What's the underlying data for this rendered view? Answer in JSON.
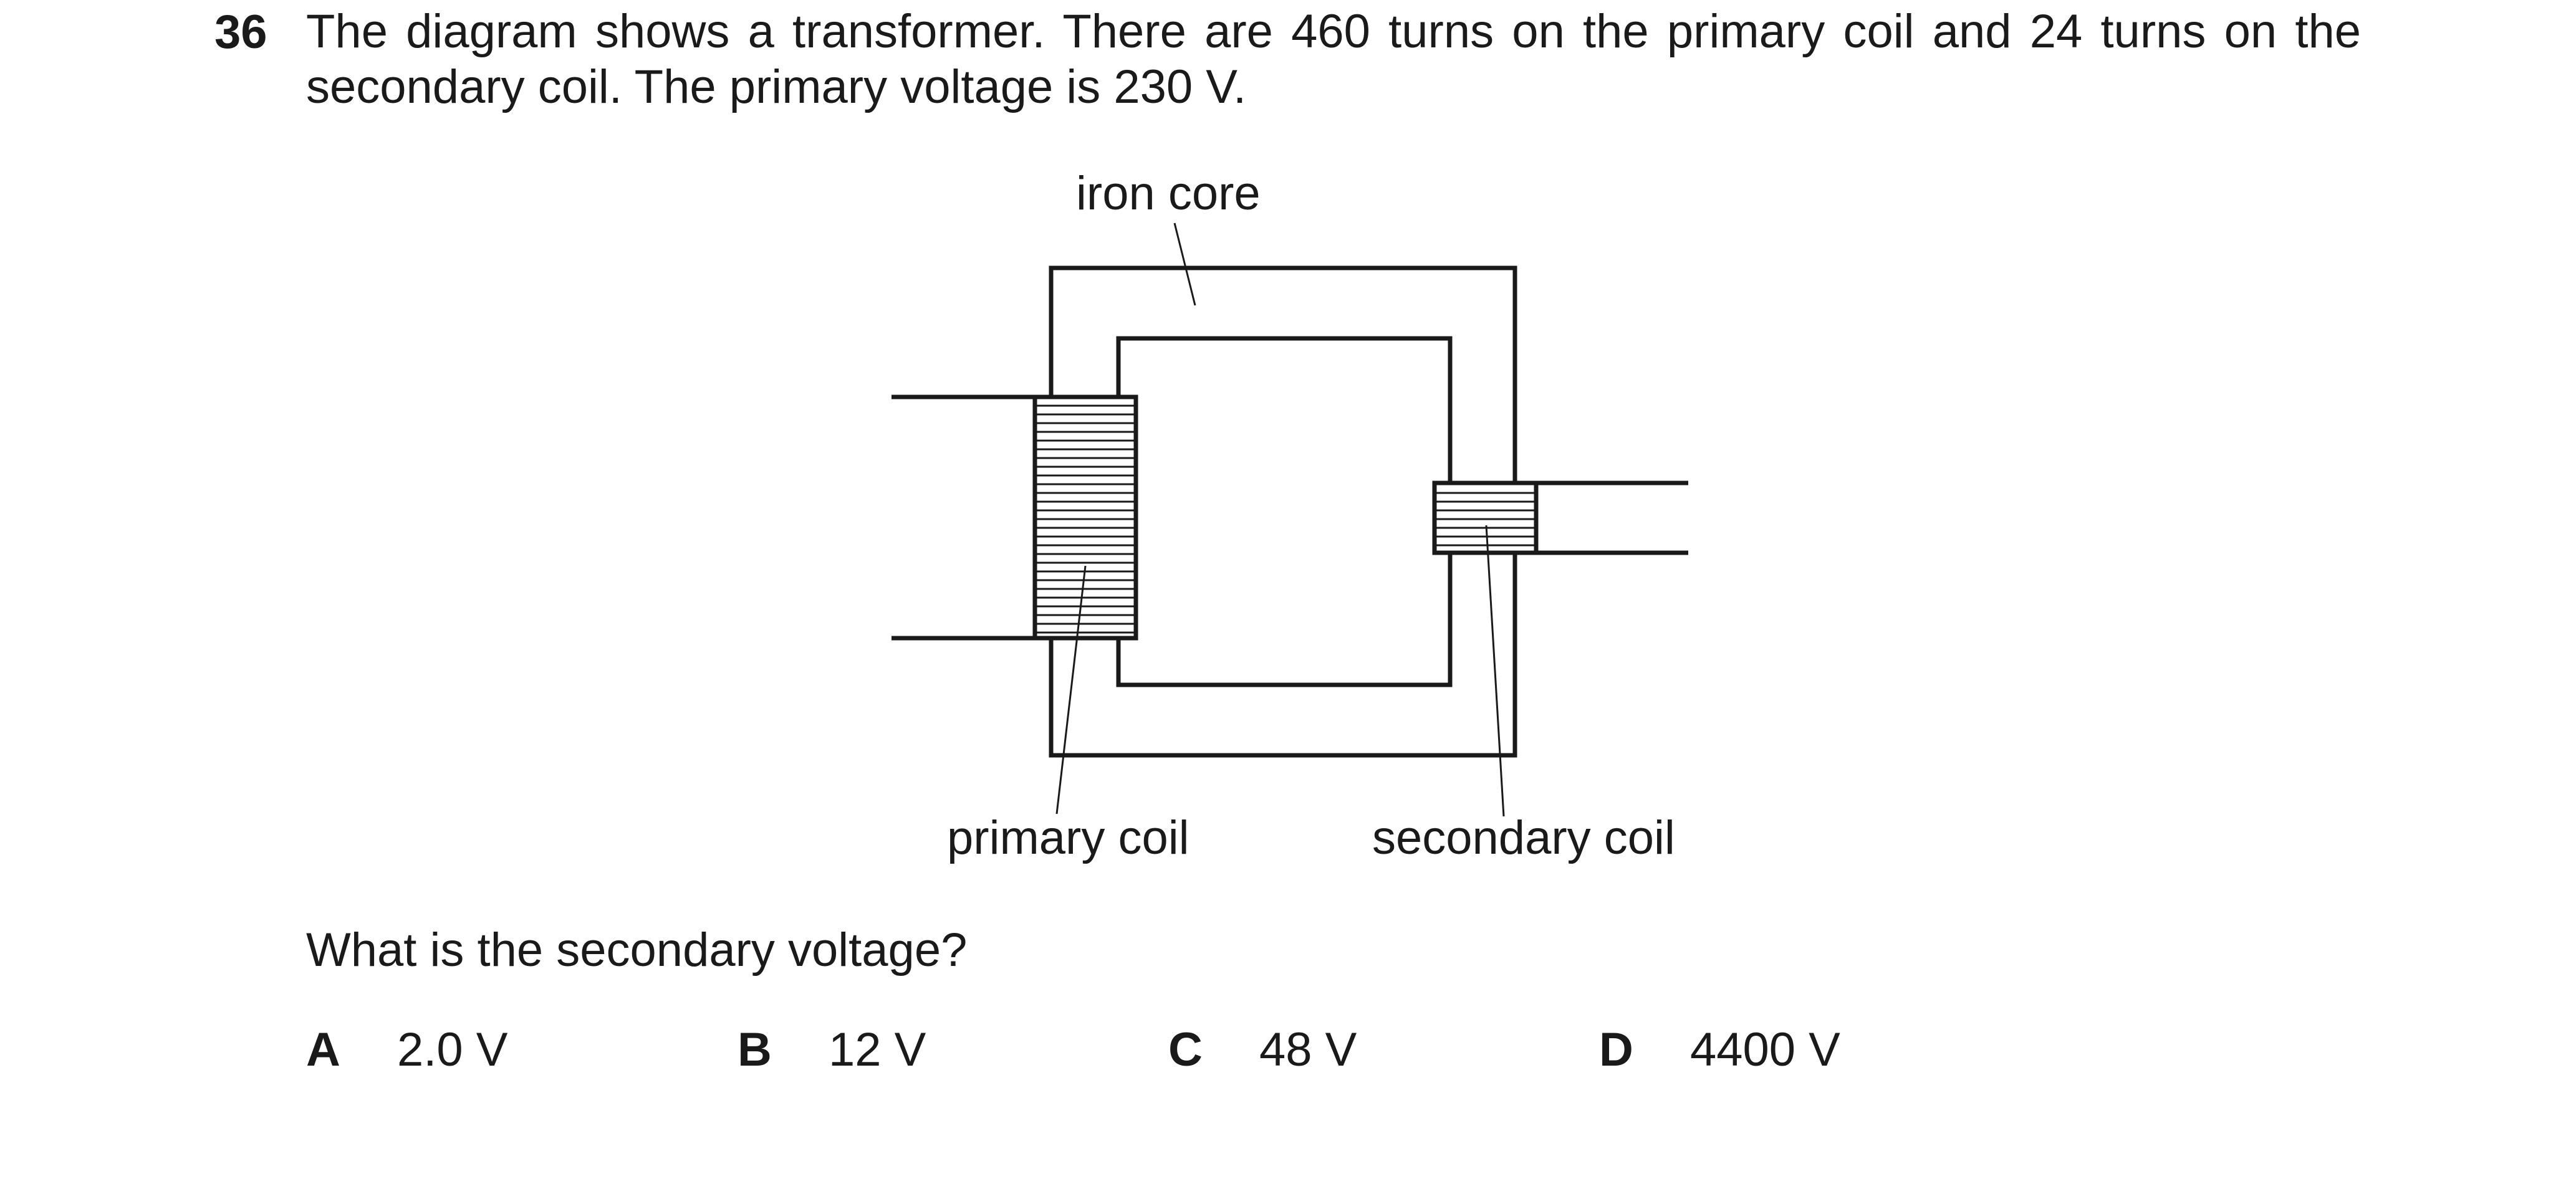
{
  "question": {
    "number": "36",
    "stem_line1": "The diagram shows a transformer. There are 460 turns on the primary coil and 24 turns on the",
    "stem_line2": "secondary coil. The primary voltage is 230 V.",
    "prompt": "What is the secondary voltage?"
  },
  "diagram": {
    "labels": {
      "iron_core": "iron core",
      "primary_coil": "primary coil",
      "secondary_coil": "secondary coil"
    }
  },
  "options": [
    {
      "letter": "A",
      "value": "2.0 V"
    },
    {
      "letter": "B",
      "value": "12 V"
    },
    {
      "letter": "C",
      "value": "48 V"
    },
    {
      "letter": "D",
      "value": "4400 V"
    }
  ]
}
